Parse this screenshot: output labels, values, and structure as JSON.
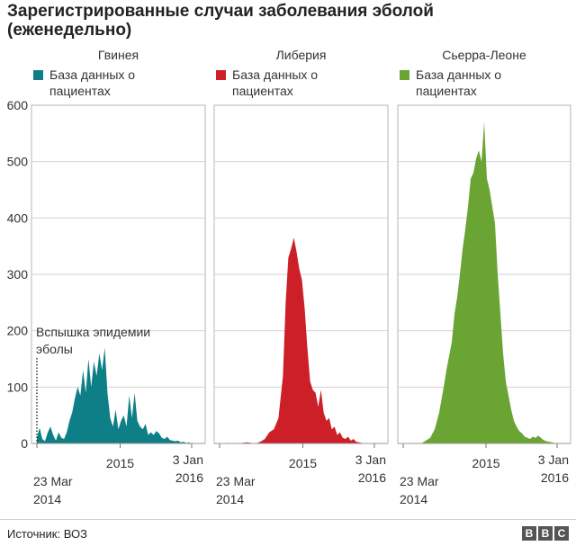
{
  "title_line1": "Зарегистрированные случаи заболевания эболой",
  "title_line2": "(еженедельно)",
  "source": "Источник: ВОЗ",
  "logo": [
    "B",
    "B",
    "C"
  ],
  "chart_data": {
    "type": "area",
    "ylim": [
      0,
      600
    ],
    "yticks": [
      0,
      100,
      200,
      300,
      400,
      500,
      600
    ],
    "x_range": [
      "2014-03-23",
      "2016-01-03"
    ],
    "x_tick_labels": {
      "start_line1": "23 Mar",
      "start_line2": "2014",
      "mid": "2015",
      "end_line1": "3 Jan",
      "end_line2": "2016"
    },
    "annotation": {
      "line1": "Вспышка эпидемии",
      "line2": "эболы",
      "x": 0
    },
    "panels": [
      {
        "title": "Гвинея",
        "legend": "База данных о пациентах",
        "legend_line1": "База данных о",
        "legend_line2": "пациентах",
        "color": "#0e7f86",
        "series": [
          [
            0,
            10
          ],
          [
            3,
            28
          ],
          [
            6,
            8
          ],
          [
            9,
            4
          ],
          [
            12,
            20
          ],
          [
            15,
            30
          ],
          [
            18,
            15
          ],
          [
            21,
            5
          ],
          [
            24,
            20
          ],
          [
            27,
            10
          ],
          [
            30,
            8
          ],
          [
            33,
            20
          ],
          [
            36,
            40
          ],
          [
            39,
            55
          ],
          [
            42,
            80
          ],
          [
            45,
            100
          ],
          [
            48,
            85
          ],
          [
            51,
            130
          ],
          [
            54,
            90
          ],
          [
            57,
            150
          ],
          [
            60,
            100
          ],
          [
            63,
            145
          ],
          [
            66,
            120
          ],
          [
            69,
            160
          ],
          [
            72,
            130
          ],
          [
            75,
            170
          ],
          [
            78,
            90
          ],
          [
            81,
            45
          ],
          [
            84,
            30
          ],
          [
            87,
            60
          ],
          [
            90,
            25
          ],
          [
            93,
            40
          ],
          [
            96,
            50
          ],
          [
            99,
            30
          ],
          [
            102,
            85
          ],
          [
            105,
            45
          ],
          [
            108,
            90
          ],
          [
            111,
            40
          ],
          [
            114,
            30
          ],
          [
            117,
            25
          ],
          [
            120,
            35
          ],
          [
            123,
            15
          ],
          [
            126,
            20
          ],
          [
            129,
            15
          ],
          [
            132,
            22
          ],
          [
            135,
            18
          ],
          [
            138,
            10
          ],
          [
            141,
            8
          ],
          [
            144,
            12
          ],
          [
            147,
            6
          ],
          [
            150,
            5
          ],
          [
            153,
            4
          ],
          [
            156,
            5
          ],
          [
            159,
            2
          ],
          [
            162,
            3
          ],
          [
            165,
            1
          ],
          [
            168,
            2
          ],
          [
            171,
            0
          ],
          [
            174,
            1
          ],
          [
            177,
            0
          ],
          [
            180,
            0
          ]
        ]
      },
      {
        "title": "Либерия",
        "legend": "База данных о пациентах",
        "legend_line1": "База данных о",
        "legend_line2": "пациентах",
        "color": "#cc1f27",
        "series": [
          [
            0,
            0
          ],
          [
            10,
            1
          ],
          [
            20,
            0
          ],
          [
            30,
            2
          ],
          [
            40,
            0
          ],
          [
            45,
            3
          ],
          [
            50,
            8
          ],
          [
            55,
            20
          ],
          [
            60,
            25
          ],
          [
            65,
            45
          ],
          [
            70,
            120
          ],
          [
            73,
            250
          ],
          [
            76,
            330
          ],
          [
            79,
            345
          ],
          [
            82,
            365
          ],
          [
            85,
            340
          ],
          [
            88,
            310
          ],
          [
            91,
            290
          ],
          [
            94,
            240
          ],
          [
            97,
            170
          ],
          [
            100,
            110
          ],
          [
            103,
            95
          ],
          [
            106,
            90
          ],
          [
            109,
            65
          ],
          [
            112,
            95
          ],
          [
            115,
            55
          ],
          [
            118,
            40
          ],
          [
            121,
            45
          ],
          [
            124,
            25
          ],
          [
            127,
            30
          ],
          [
            130,
            15
          ],
          [
            133,
            20
          ],
          [
            136,
            10
          ],
          [
            139,
            8
          ],
          [
            142,
            12
          ],
          [
            145,
            5
          ],
          [
            148,
            8
          ],
          [
            151,
            3
          ],
          [
            154,
            2
          ],
          [
            157,
            1
          ],
          [
            160,
            0
          ],
          [
            180,
            0
          ]
        ]
      },
      {
        "title": "Сьерра-Леоне",
        "legend": "База данных о пациентах",
        "legend_line1": "База данных о",
        "legend_line2": "пациентах",
        "color": "#6aa534",
        "series": [
          [
            0,
            0
          ],
          [
            20,
            0
          ],
          [
            25,
            5
          ],
          [
            30,
            10
          ],
          [
            35,
            25
          ],
          [
            40,
            55
          ],
          [
            45,
            100
          ],
          [
            48,
            130
          ],
          [
            51,
            155
          ],
          [
            54,
            180
          ],
          [
            57,
            230
          ],
          [
            60,
            260
          ],
          [
            63,
            300
          ],
          [
            66,
            345
          ],
          [
            69,
            380
          ],
          [
            72,
            420
          ],
          [
            75,
            470
          ],
          [
            78,
            480
          ],
          [
            81,
            505
          ],
          [
            84,
            520
          ],
          [
            87,
            500
          ],
          [
            90,
            570
          ],
          [
            93,
            470
          ],
          [
            96,
            450
          ],
          [
            99,
            420
          ],
          [
            102,
            390
          ],
          [
            105,
            300
          ],
          [
            108,
            230
          ],
          [
            111,
            160
          ],
          [
            114,
            110
          ],
          [
            117,
            85
          ],
          [
            120,
            60
          ],
          [
            123,
            40
          ],
          [
            126,
            30
          ],
          [
            129,
            22
          ],
          [
            132,
            18
          ],
          [
            135,
            12
          ],
          [
            138,
            10
          ],
          [
            141,
            8
          ],
          [
            144,
            12
          ],
          [
            147,
            10
          ],
          [
            150,
            14
          ],
          [
            153,
            10
          ],
          [
            156,
            6
          ],
          [
            159,
            4
          ],
          [
            162,
            3
          ],
          [
            165,
            2
          ],
          [
            168,
            1
          ],
          [
            171,
            0
          ],
          [
            180,
            0
          ]
        ]
      }
    ]
  }
}
